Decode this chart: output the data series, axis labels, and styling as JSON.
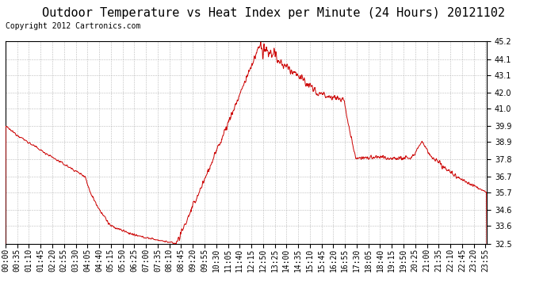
{
  "title": "Outdoor Temperature vs Heat Index per Minute (24 Hours) 20121102",
  "copyright": "Copyright 2012 Cartronics.com",
  "ylim": [
    32.5,
    45.2
  ],
  "yticks": [
    32.5,
    33.6,
    34.6,
    35.7,
    36.7,
    37.8,
    38.9,
    39.9,
    41.0,
    42.0,
    43.1,
    44.1,
    45.2
  ],
  "line_color": "#cc0000",
  "background_color": "#ffffff",
  "grid_color": "#bbbbbb",
  "legend_heat_index_bg": "#0000cc",
  "legend_temp_bg": "#cc0000",
  "legend_text_color": "#ffffff",
  "title_fontsize": 11,
  "copyright_fontsize": 7,
  "tick_fontsize": 7
}
